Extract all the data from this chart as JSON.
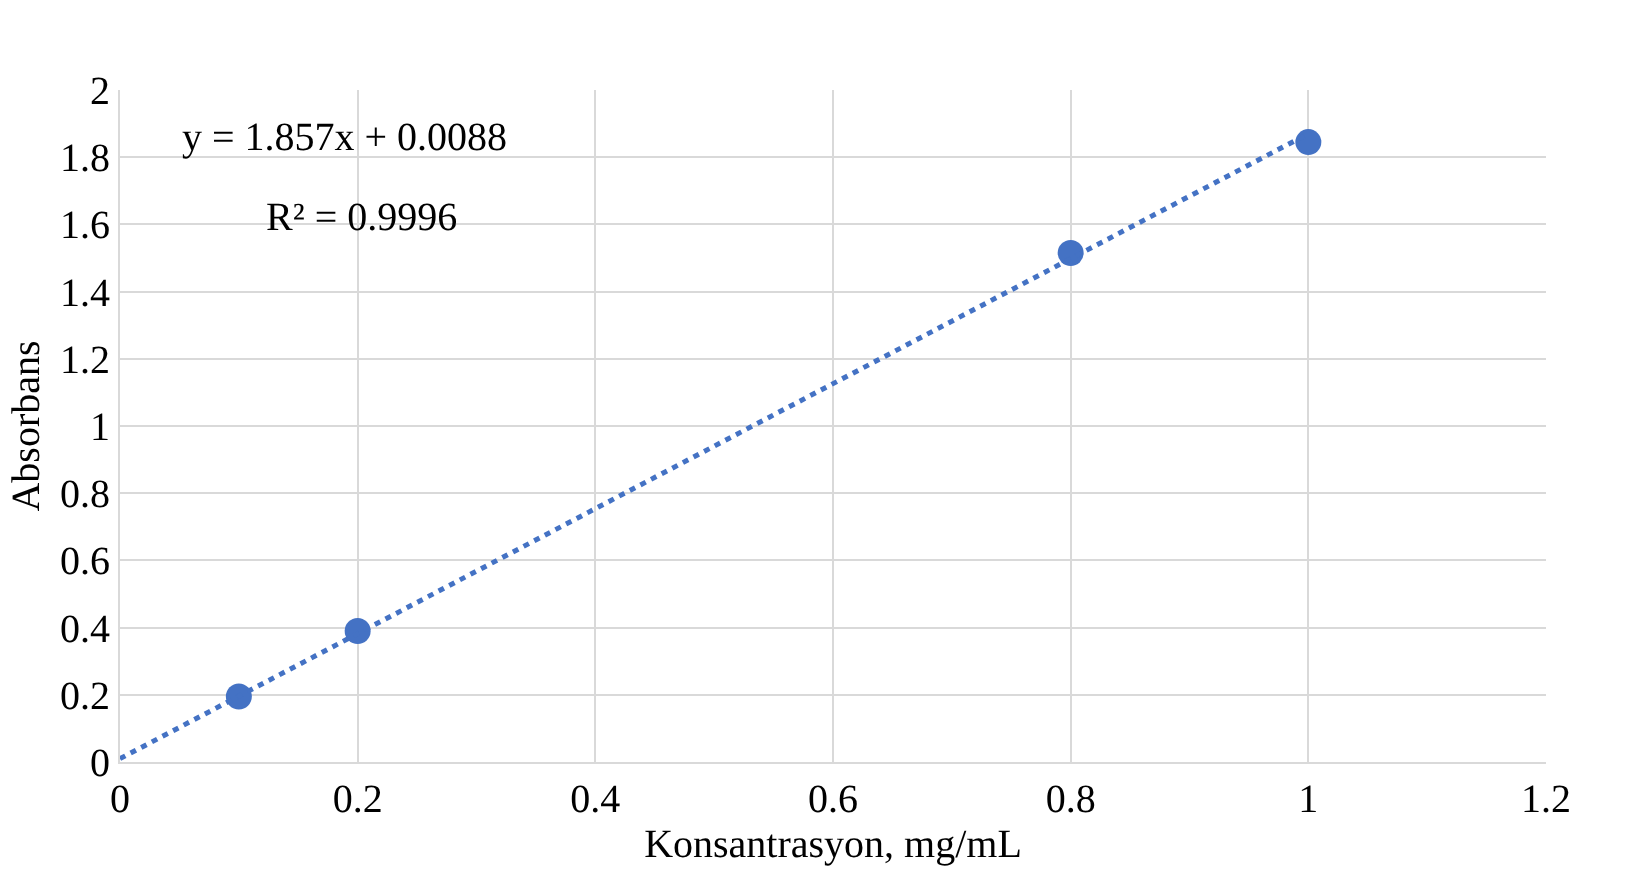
{
  "chart_data": {
    "type": "scatter",
    "xlabel": "Konsantrasyon, mg/mL",
    "ylabel": "Absorbans",
    "annotations": [
      "y = 1.857x + 0.0088",
      "R² = 0.9996"
    ],
    "series": [
      {
        "color": "#4472c4",
        "x": [
          0.1,
          0.2,
          0.8,
          1.0
        ],
        "values": [
          0.195,
          0.39,
          1.515,
          1.845
        ],
        "marker": "circle"
      },
      {
        "type": "line",
        "color": "#4472c4",
        "x": [
          0,
          1
        ],
        "values": [
          0.01,
          1.87
        ],
        "line_style": "dotted",
        "marker": "none"
      }
    ],
    "xlim": [
      0,
      1.2
    ],
    "xticks": [
      0,
      0.2,
      0.4,
      0.6,
      0.8,
      1,
      1.2
    ],
    "ylim": [
      0,
      2
    ],
    "yticks": [
      0,
      0.2,
      0.4,
      0.6,
      0.8,
      1,
      1.2,
      1.4,
      1.6,
      1.8,
      2
    ],
    "grid": true
  }
}
